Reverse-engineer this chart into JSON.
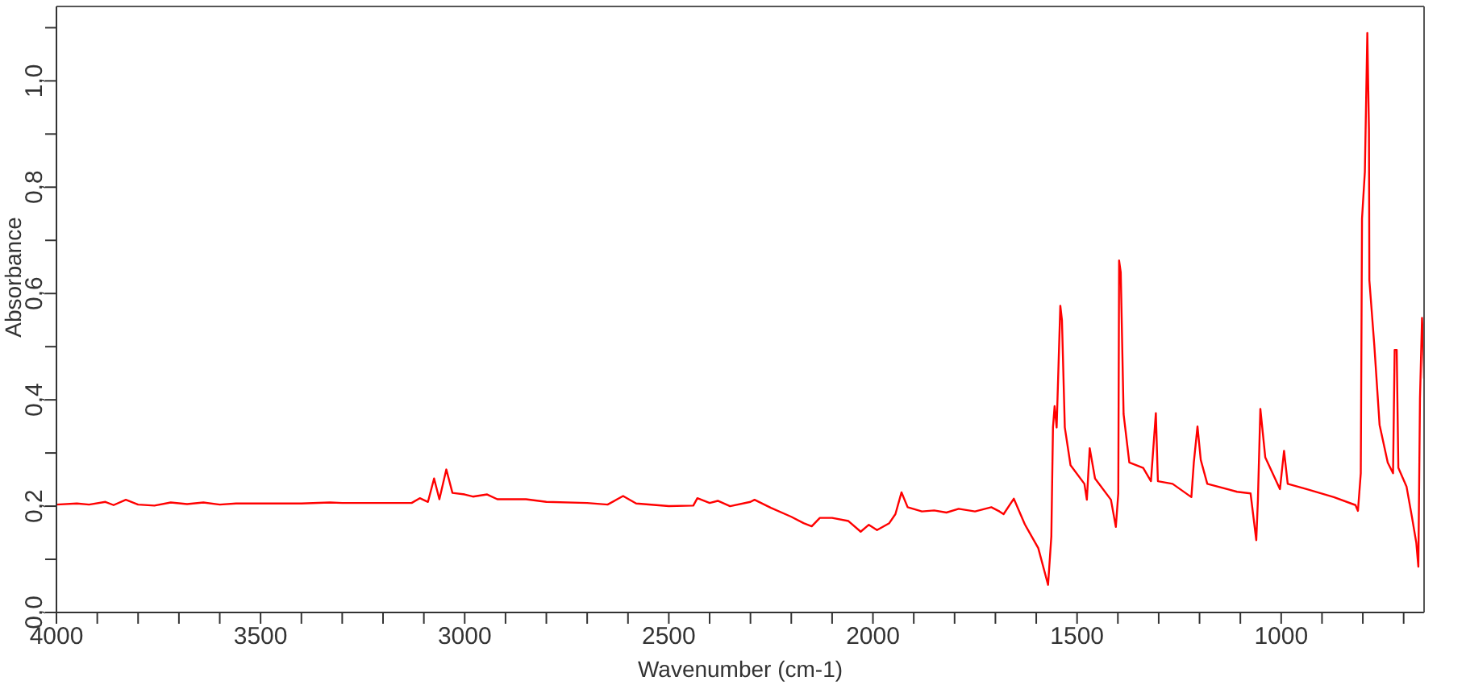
{
  "chart_data": {
    "type": "line",
    "xlabel": "Wavenumber (cm-1)",
    "ylabel": "Absorbance",
    "xlim": [
      4000,
      650
    ],
    "ylim": [
      0,
      1.14
    ],
    "xticks": [
      {
        "value": 4000,
        "label": "4000"
      },
      {
        "value": 3900,
        "label": null
      },
      {
        "value": 3800,
        "label": null
      },
      {
        "value": 3700,
        "label": null
      },
      {
        "value": 3600,
        "label": null
      },
      {
        "value": 3500,
        "label": "3500"
      },
      {
        "value": 3400,
        "label": null
      },
      {
        "value": 3300,
        "label": null
      },
      {
        "value": 3200,
        "label": null
      },
      {
        "value": 3100,
        "label": null
      },
      {
        "value": 3000,
        "label": "3000"
      },
      {
        "value": 2900,
        "label": null
      },
      {
        "value": 2800,
        "label": null
      },
      {
        "value": 2700,
        "label": null
      },
      {
        "value": 2600,
        "label": null
      },
      {
        "value": 2500,
        "label": "2500"
      },
      {
        "value": 2400,
        "label": null
      },
      {
        "value": 2300,
        "label": null
      },
      {
        "value": 2200,
        "label": null
      },
      {
        "value": 2100,
        "label": null
      },
      {
        "value": 2000,
        "label": "2000"
      },
      {
        "value": 1900,
        "label": null
      },
      {
        "value": 1800,
        "label": null
      },
      {
        "value": 1700,
        "label": null
      },
      {
        "value": 1600,
        "label": null
      },
      {
        "value": 1500,
        "label": "1500"
      },
      {
        "value": 1400,
        "label": null
      },
      {
        "value": 1300,
        "label": null
      },
      {
        "value": 1200,
        "label": null
      },
      {
        "value": 1100,
        "label": null
      },
      {
        "value": 1000,
        "label": "1000"
      },
      {
        "value": 900,
        "label": null
      },
      {
        "value": 800,
        "label": null
      },
      {
        "value": 700,
        "label": null
      }
    ],
    "yticks": [
      {
        "value": 0,
        "label": "0,0"
      },
      {
        "value": 0.1,
        "label": null
      },
      {
        "value": 0.2,
        "label": "0,2"
      },
      {
        "value": 0.3,
        "label": null
      },
      {
        "value": 0.4,
        "label": "0,4"
      },
      {
        "value": 0.5,
        "label": null
      },
      {
        "value": 0.6,
        "label": "0,6"
      },
      {
        "value": 0.7,
        "label": null
      },
      {
        "value": 0.8,
        "label": "0,8"
      },
      {
        "value": 0.9,
        "label": null
      },
      {
        "value": 1.0,
        "label": "1,0"
      },
      {
        "value": 1.1,
        "label": null
      }
    ],
    "grid": false,
    "legend": false,
    "marker": "none",
    "line_style": "solid",
    "series": [
      {
        "color": "#ff0000",
        "x": [
          4000,
          3950,
          3920,
          3880,
          3860,
          3830,
          3800,
          3760,
          3720,
          3680,
          3640,
          3600,
          3560,
          3500,
          3400,
          3330,
          3300,
          3200,
          3130,
          3110,
          3090,
          3075,
          3062,
          3045,
          3030,
          3000,
          2980,
          2945,
          2920,
          2850,
          2800,
          2700,
          2650,
          2612,
          2580,
          2500,
          2440,
          2430,
          2400,
          2380,
          2350,
          2300,
          2290,
          2250,
          2200,
          2170,
          2150,
          2130,
          2100,
          2060,
          2030,
          2010,
          1990,
          1960,
          1945,
          1930,
          1915,
          1880,
          1850,
          1820,
          1790,
          1750,
          1710,
          1690,
          1680,
          1655,
          1628,
          1595,
          1571,
          1563,
          1559,
          1555,
          1550,
          1541,
          1537,
          1530,
          1516,
          1482,
          1476,
          1469,
          1456,
          1417,
          1405,
          1399,
          1397,
          1393,
          1386,
          1372,
          1338,
          1319,
          1307,
          1302,
          1266,
          1220,
          1214,
          1205,
          1197,
          1181,
          1108,
          1075,
          1061,
          1057,
          1051,
          1039,
          1003,
          993,
          984,
          938,
          871,
          818,
          812,
          805,
          802,
          795,
          789,
          785,
          784,
          772,
          759,
          739,
          726,
          722,
          717,
          713,
          693,
          680,
          669,
          664,
          660,
          655,
          652,
          650
        ],
        "values": [
          0.203,
          0.205,
          0.203,
          0.208,
          0.202,
          0.212,
          0.203,
          0.201,
          0.207,
          0.204,
          0.207,
          0.203,
          0.205,
          0.205,
          0.205,
          0.207,
          0.206,
          0.206,
          0.206,
          0.215,
          0.208,
          0.252,
          0.213,
          0.269,
          0.225,
          0.222,
          0.218,
          0.222,
          0.213,
          0.213,
          0.208,
          0.206,
          0.203,
          0.219,
          0.205,
          0.2,
          0.201,
          0.215,
          0.206,
          0.21,
          0.2,
          0.208,
          0.212,
          0.197,
          0.18,
          0.168,
          0.162,
          0.178,
          0.178,
          0.172,
          0.152,
          0.165,
          0.155,
          0.168,
          0.185,
          0.226,
          0.198,
          0.19,
          0.192,
          0.188,
          0.195,
          0.19,
          0.198,
          0.19,
          0.185,
          0.214,
          0.166,
          0.121,
          0.052,
          0.143,
          0.348,
          0.388,
          0.348,
          0.577,
          0.55,
          0.348,
          0.277,
          0.242,
          0.212,
          0.309,
          0.252,
          0.212,
          0.161,
          0.224,
          0.662,
          0.64,
          0.373,
          0.282,
          0.272,
          0.247,
          0.375,
          0.247,
          0.242,
          0.217,
          0.282,
          0.35,
          0.287,
          0.242,
          0.227,
          0.224,
          0.136,
          0.212,
          0.383,
          0.292,
          0.232,
          0.304,
          0.242,
          0.232,
          0.217,
          0.202,
          0.191,
          0.262,
          0.741,
          0.829,
          1.09,
          0.909,
          0.625,
          0.504,
          0.353,
          0.282,
          0.262,
          0.494,
          0.494,
          0.272,
          0.237,
          0.181,
          0.131,
          0.086,
          0.403,
          0.554,
          0.5,
          0.44
        ]
      }
    ]
  }
}
